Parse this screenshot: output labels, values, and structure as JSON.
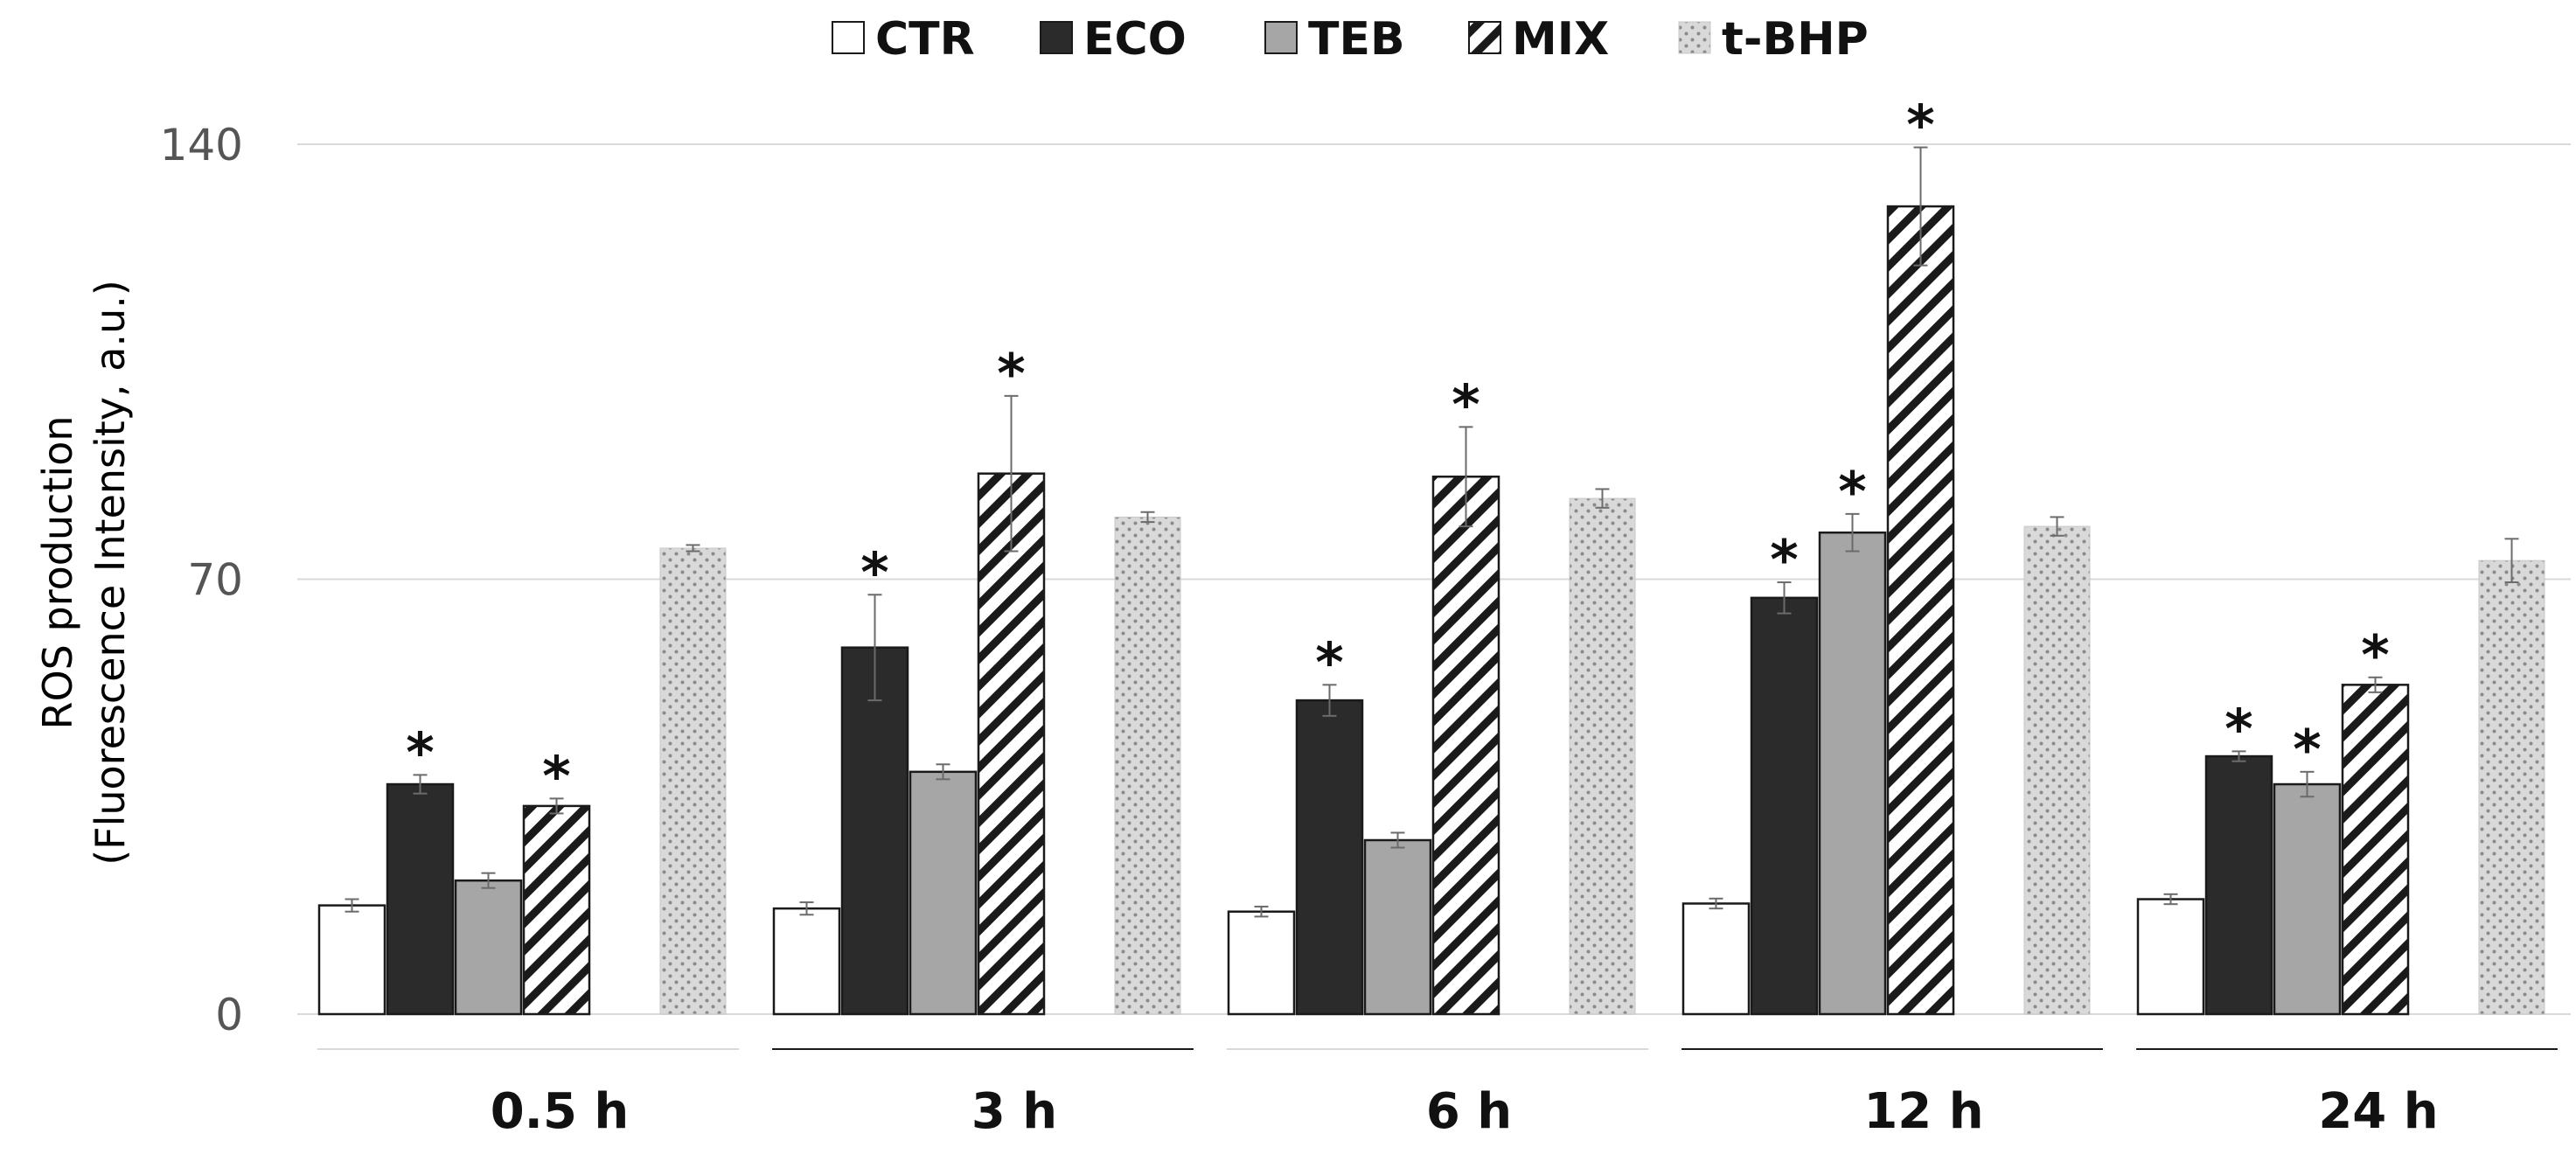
{
  "chart_data": {
    "type": "bar",
    "title": "",
    "ylabel_line1": "ROS production",
    "ylabel_line2": "(Fluorescence Intensity, a.u.)",
    "xlabel": "",
    "ylim": [
      0,
      140
    ],
    "yticks": [
      "0",
      "70",
      "140"
    ],
    "ytick_values": [
      0,
      70,
      140
    ],
    "grid": true,
    "legend_position": "top-center",
    "categories": [
      "0.5 h",
      "3 h",
      "6 h",
      "12 h",
      "24 h"
    ],
    "series": [
      {
        "name": "CTR",
        "values": [
          17.5,
          17,
          16.5,
          17.8,
          18.5
        ],
        "errors": [
          1.0,
          1.0,
          0.8,
          0.8,
          0.8
        ],
        "significant": [
          false,
          false,
          false,
          false,
          false
        ]
      },
      {
        "name": "ECO",
        "values": [
          37,
          59,
          50.5,
          67,
          41.5
        ],
        "errors": [
          1.5,
          8.5,
          2.5,
          2.5,
          0.8
        ],
        "significant": [
          true,
          true,
          true,
          true,
          true
        ]
      },
      {
        "name": "TEB",
        "values": [
          21.5,
          39,
          28,
          77.5,
          37
        ],
        "errors": [
          1.2,
          1.2,
          1.2,
          3.0,
          2.0
        ],
        "significant": [
          false,
          false,
          false,
          true,
          true
        ]
      },
      {
        "name": "MIX",
        "values": [
          33.5,
          87,
          86.5,
          130,
          53
        ],
        "errors": [
          1.2,
          12.5,
          8.0,
          9.5,
          1.2
        ],
        "significant": [
          true,
          true,
          true,
          true,
          true
        ]
      },
      {
        "name": "t-BHP",
        "values": [
          75,
          80,
          83,
          78.5,
          73
        ],
        "errors": [
          0.5,
          0.8,
          1.5,
          1.5,
          3.5
        ],
        "significant": [
          false,
          false,
          false,
          false,
          false
        ]
      }
    ],
    "significance_marker": "*"
  },
  "colors": {
    "CTR": "#ffffff",
    "ECO": "#2b2b2b",
    "TEB": "#a6a6a6",
    "MIX": "#ffffff",
    "t-BHP": "#d6d6d6",
    "grid": "#d9d9d9",
    "stroke": "#1a1a1a"
  }
}
